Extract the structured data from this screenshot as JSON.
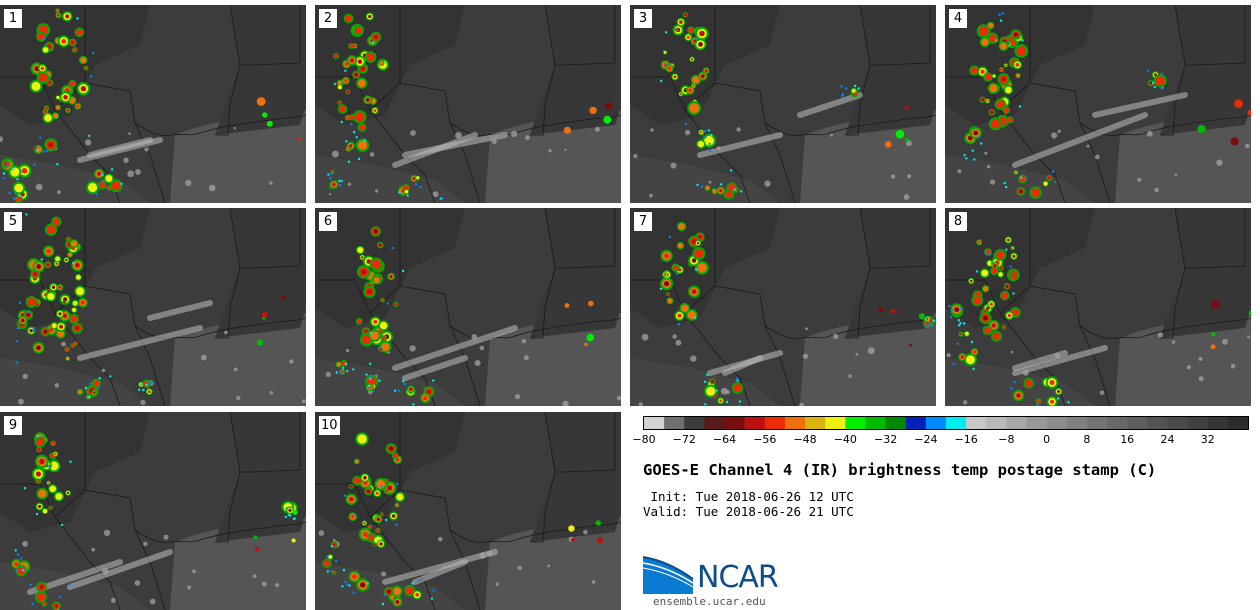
{
  "panels": [
    {
      "label": "1"
    },
    {
      "label": "2"
    },
    {
      "label": "3"
    },
    {
      "label": "4"
    },
    {
      "label": "5"
    },
    {
      "label": "6"
    },
    {
      "label": "7"
    },
    {
      "label": "8"
    },
    {
      "label": "9"
    },
    {
      "label": "10"
    }
  ],
  "colorbar": {
    "min": -80,
    "max": 40,
    "step": 4,
    "tick_labels": [
      "−80",
      "−72",
      "−64",
      "−56",
      "−48",
      "−40",
      "−32",
      "−24",
      "−16",
      "−8",
      "0",
      "8",
      "16",
      "24",
      "32"
    ],
    "tick_values": [
      -80,
      -72,
      -64,
      -56,
      -48,
      -40,
      -32,
      -24,
      -16,
      -8,
      0,
      8,
      16,
      24,
      32
    ],
    "colors": [
      "#d2d2d2",
      "#707070",
      "#3c3c3c",
      "#5a1a1a",
      "#7a0e0e",
      "#bb1111",
      "#ee2a0a",
      "#f07010",
      "#d9b410",
      "#f0f010",
      "#00ee00",
      "#00bb00",
      "#008800",
      "#0022bb",
      "#0088ff",
      "#00eeee",
      "#c8c8c8",
      "#b8b8b8",
      "#a8a8a8",
      "#989898",
      "#8c8c8c",
      "#808080",
      "#747474",
      "#686868",
      "#5e5e5e",
      "#545454",
      "#4a4a4a",
      "#404040",
      "#363636",
      "#2c2c2c"
    ]
  },
  "title": "GOES-E Channel 4 (IR) brightness temp postage stamp (C)",
  "init": " Init: Tue 2018-06-26 12 UTC",
  "valid": "Valid: Tue 2018-06-26 21 UTC",
  "logo": {
    "name": "NCAR",
    "site": "ensemble.ucar.edu"
  }
}
